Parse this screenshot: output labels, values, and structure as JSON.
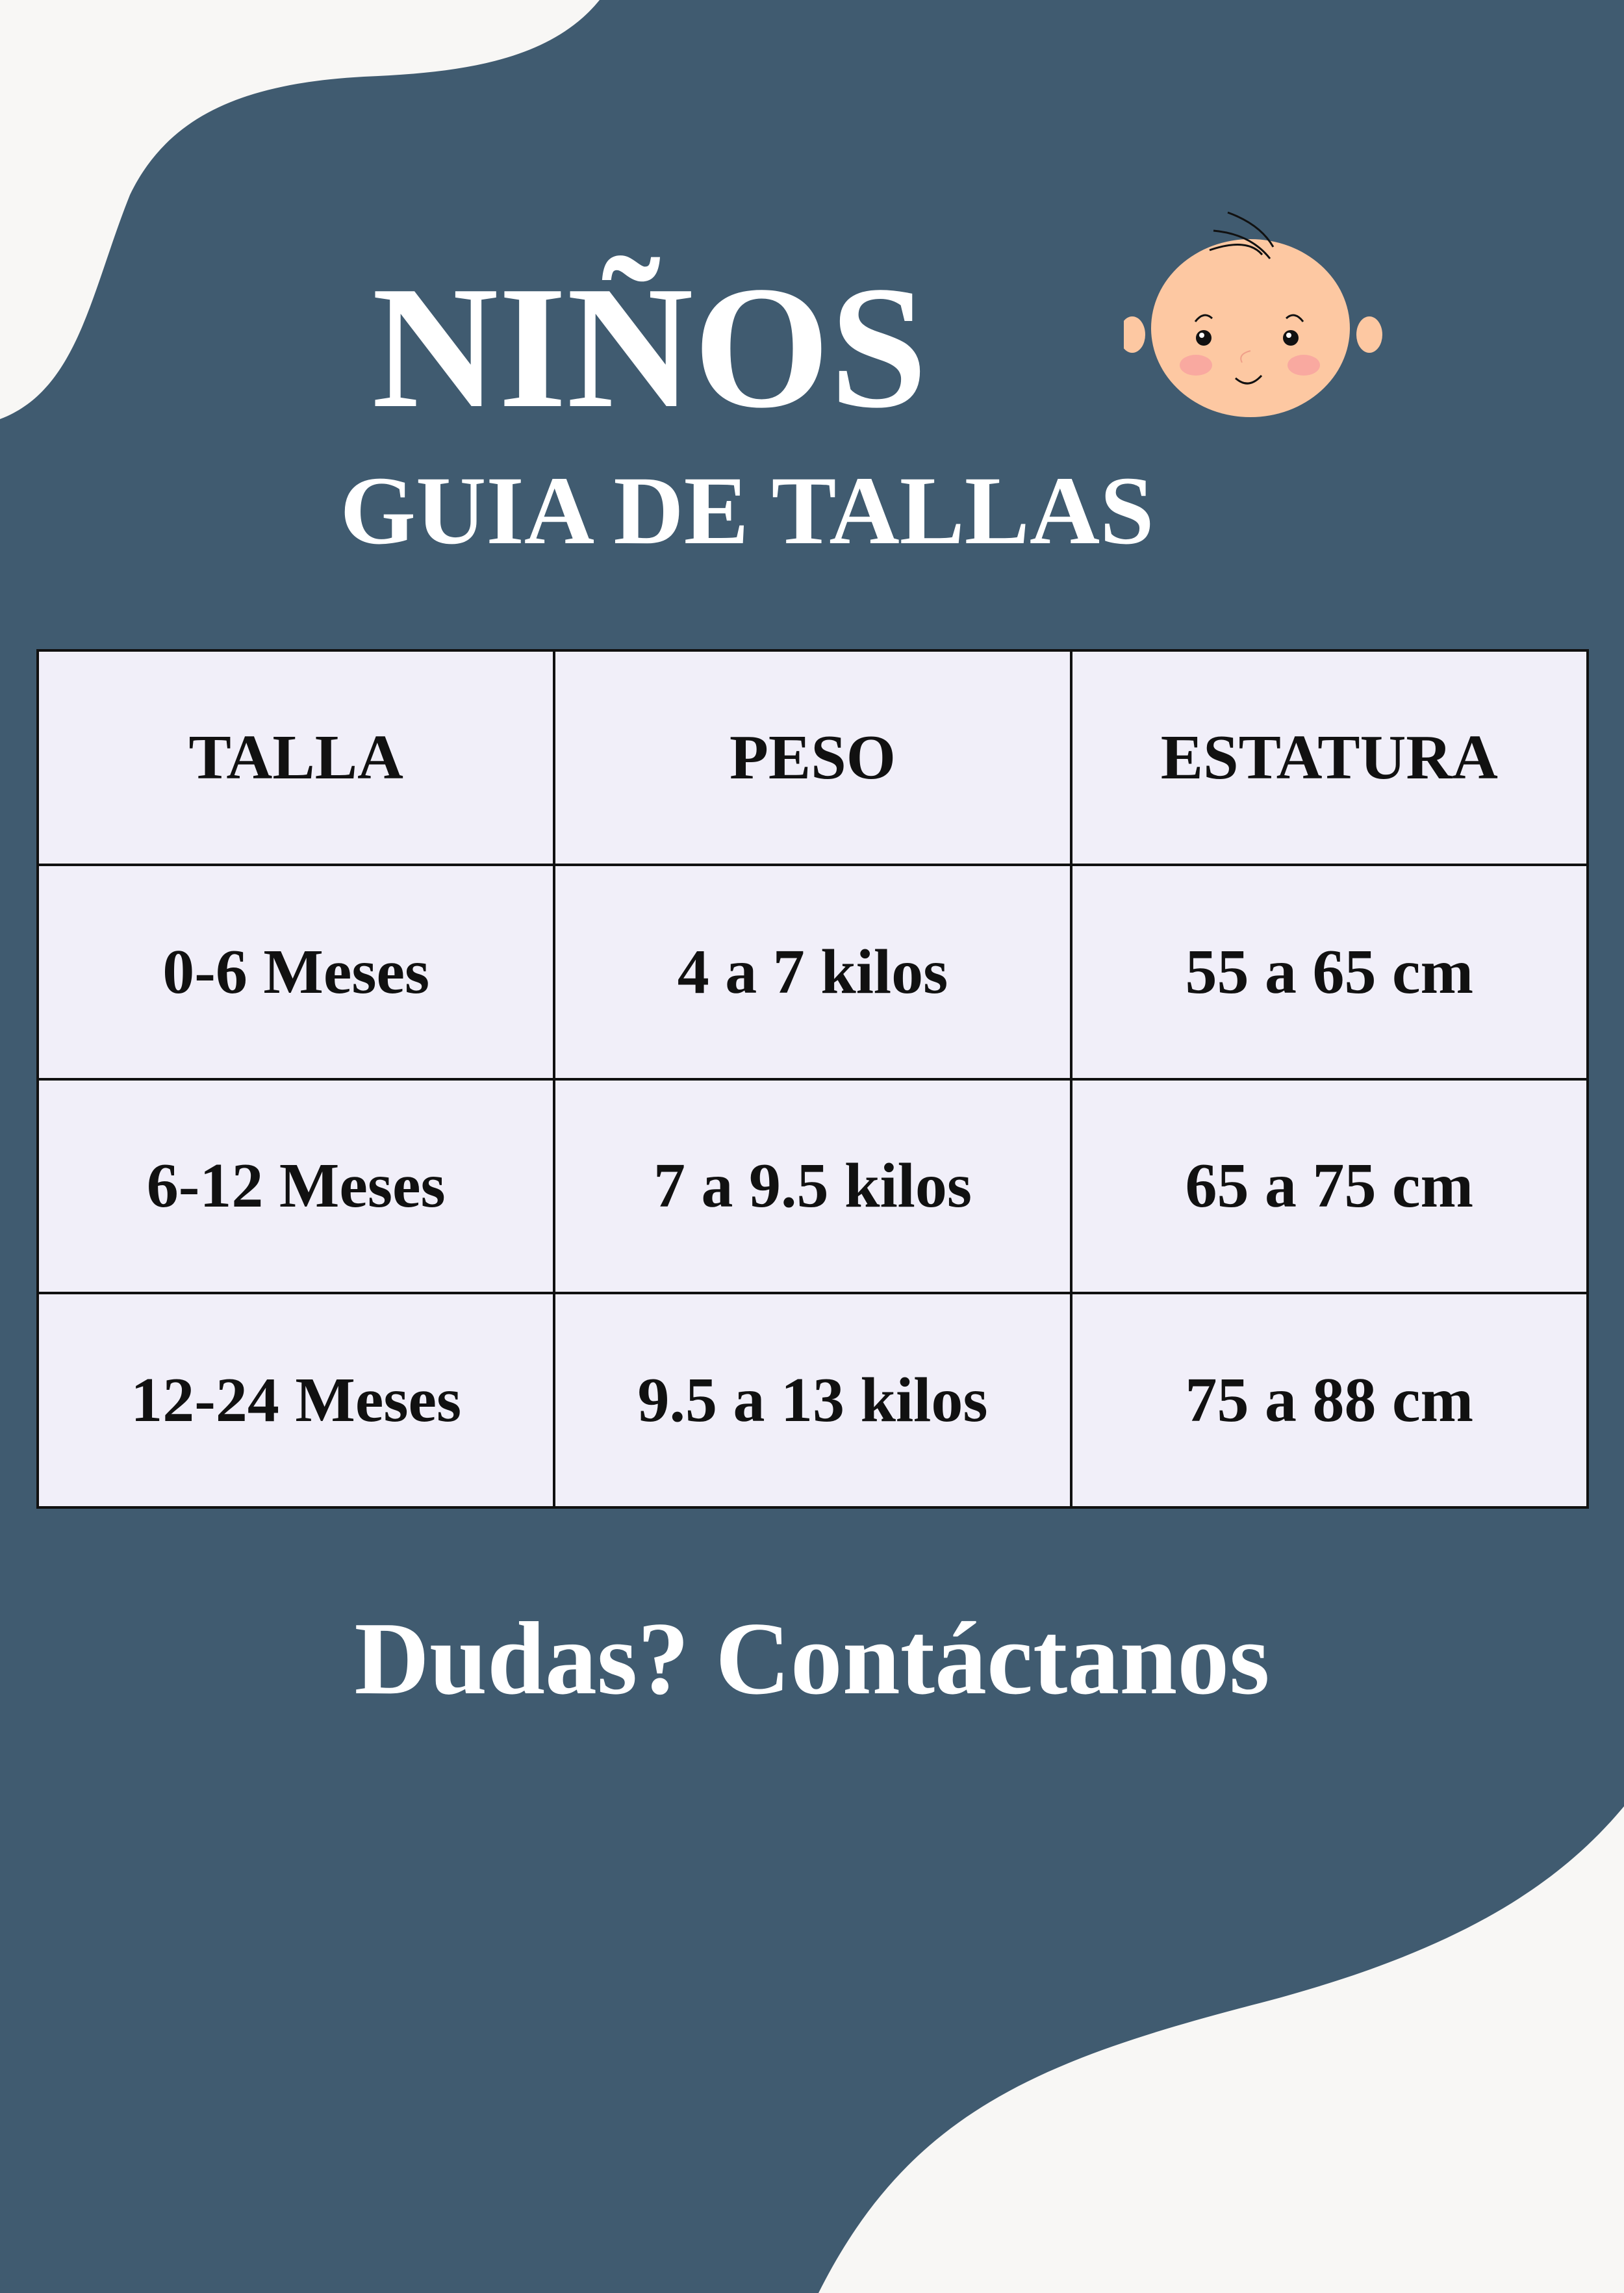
{
  "header": {
    "title": "NIÑOS",
    "subtitle": "GUIA DE TALLAS",
    "icon": "baby-face-icon"
  },
  "table": {
    "headers": [
      "TALLA",
      "PESO",
      "ESTATURA"
    ],
    "rows": [
      [
        "0-6 Meses",
        "4 a 7 kilos",
        "55 a 65 cm"
      ],
      [
        "6-12 Meses",
        "7 a 9.5 kilos",
        "65 a 75 cm"
      ],
      [
        "12-24 Meses",
        "9.5 a 13 kilos",
        "75 a 88 cm"
      ]
    ]
  },
  "footer": {
    "text": "Dudas? Contáctanos"
  },
  "colors": {
    "background": "#405b70",
    "blob": "#f8f7f5",
    "cell": "#f1eff9",
    "text": "#ffffff"
  }
}
